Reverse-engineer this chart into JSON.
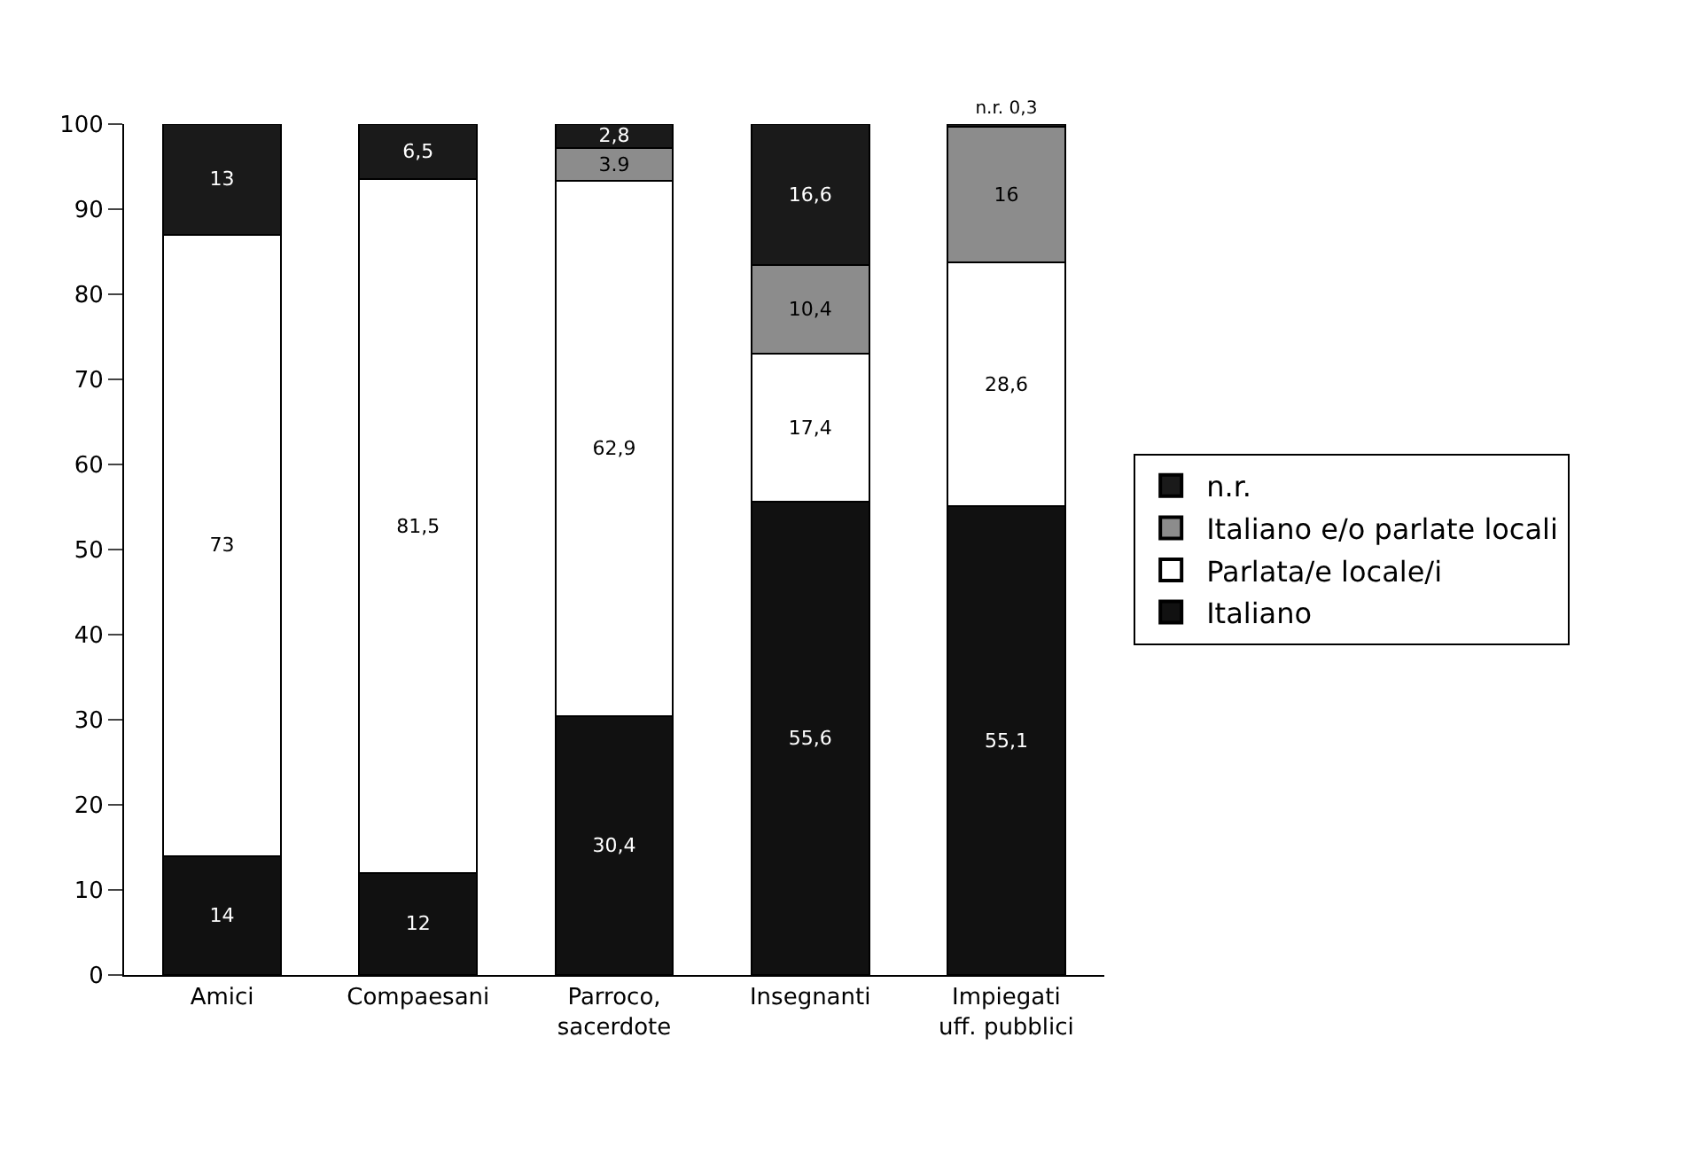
{
  "chart_data": {
    "type": "bar",
    "stacked": true,
    "categories": [
      "Amici",
      "Compaesani",
      "Parroco,\nsacerdote",
      "Insegnanti",
      "Impiegati\nuff. pubblici"
    ],
    "series": [
      {
        "name": "Italiano",
        "color": "#111111",
        "values": [
          14,
          12,
          30.4,
          55.6,
          55.1
        ],
        "value_labels": [
          "14",
          "12",
          "30,4",
          "55,6",
          "55,1"
        ]
      },
      {
        "name": "Parlata/e locale/i",
        "color": "#ffffff",
        "values": [
          73,
          81.5,
          62.9,
          17.4,
          28.6
        ],
        "value_labels": [
          "73",
          "81,5",
          "62,9",
          "17,4",
          "28,6"
        ]
      },
      {
        "name": "Italiano e/o parlate locali",
        "color": "#8c8c8c",
        "values": [
          0,
          0,
          3.9,
          10.4,
          16
        ],
        "value_labels": [
          null,
          null,
          "3.9",
          "10,4",
          "16"
        ]
      },
      {
        "name": "n.r.",
        "color": "#1a1a1a",
        "values": [
          13,
          6.5,
          2.8,
          16.6,
          0.3
        ],
        "value_labels": [
          "13",
          "6,5",
          "2,8",
          "16,6",
          "n.r. 0,3"
        ]
      }
    ],
    "ylim": [
      0,
      100
    ],
    "yticks": [
      0,
      10,
      20,
      30,
      40,
      50,
      60,
      70,
      80,
      90,
      100
    ],
    "grid": false,
    "legend": "right"
  }
}
